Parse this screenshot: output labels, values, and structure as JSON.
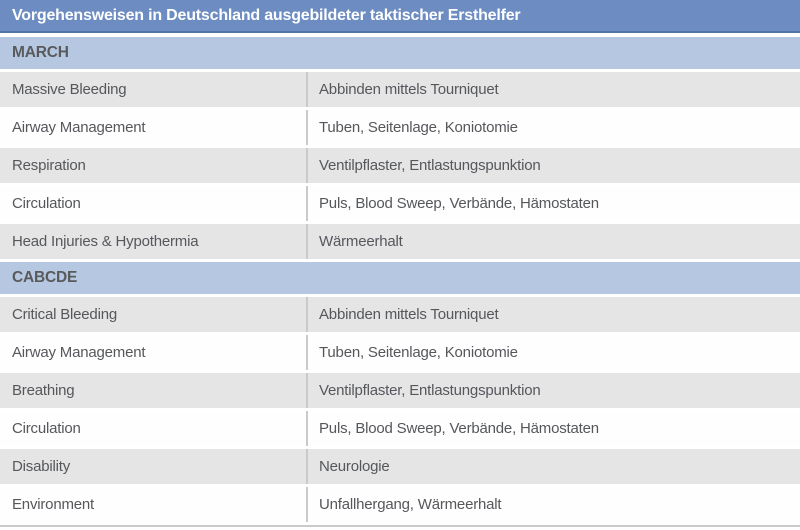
{
  "colors": {
    "header_bg": "#6c8cc2",
    "header_border": "#4f74a6",
    "title_text": "#ffffff",
    "section_bg": "#b6c7e1",
    "section_text": "#595a5c",
    "row_bg": "#fefefe",
    "row_alt_bg": "#e5e5e6",
    "row_text": "#55575b",
    "divider": "#c9cacc"
  },
  "table": {
    "title": "Vorgehensweisen in Deutschland ausgebildeter taktischer Ersthelfer",
    "sections": [
      {
        "header": "MARCH",
        "rows": [
          {
            "label": "Massive Bleeding",
            "value": "Abbinden mittels Tourniquet"
          },
          {
            "label": "Airway Management",
            "value": "Tuben, Seitenlage, Koniotomie"
          },
          {
            "label": "Respiration",
            "value": "Ventilpflaster, Entlastungspunktion"
          },
          {
            "label": "Circulation",
            "value": "Puls, Blood Sweep, Verbände, Hämostaten"
          },
          {
            "label": "Head Injuries & Hypothermia",
            "value": "Wärmeerhalt"
          }
        ]
      },
      {
        "header": "CABCDE",
        "rows": [
          {
            "label": "Critical Bleeding",
            "value": "Abbinden mittels Tourniquet"
          },
          {
            "label": "Airway Management",
            "value": "Tuben, Seitenlage, Koniotomie"
          },
          {
            "label": "Breathing",
            "value": "Ventilpflaster, Entlastungspunktion"
          },
          {
            "label": "Circulation",
            "value": "Puls, Blood Sweep, Verbände, Hämostaten"
          },
          {
            "label": "Disability",
            "value": "Neurologie"
          },
          {
            "label": "Environment",
            "value": "Unfallhergang, Wärmeerhalt"
          }
        ]
      }
    ]
  }
}
